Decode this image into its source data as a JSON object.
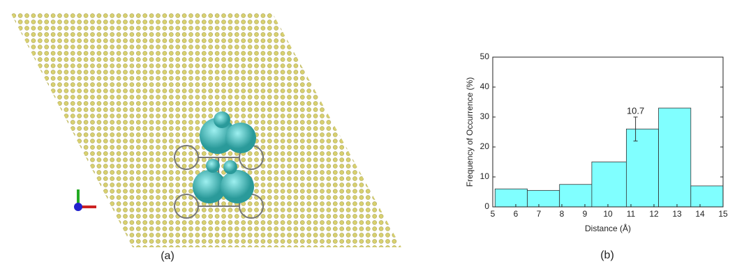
{
  "panels": [
    {
      "label": "(a)"
    },
    {
      "label": "(b)"
    }
  ],
  "chart_data": {
    "type": "histogram",
    "xlabel": "Distance (Å)",
    "ylabel": "Frequency of Occurrence (%)",
    "bins": [
      5.1,
      6.5,
      7.9,
      9.3,
      10.8,
      12.2,
      13.6,
      15.0
    ],
    "values": [
      6,
      5.5,
      7.5,
      15,
      26,
      33,
      7
    ],
    "color": "#80ffff",
    "edgecolor": "#333333",
    "xlim": [
      5,
      15
    ],
    "xticks": [
      5,
      6,
      7,
      8,
      9,
      10,
      11,
      12,
      13,
      14,
      15
    ],
    "ylim": [
      0,
      50
    ],
    "yticks": [
      0,
      10,
      20,
      30,
      40,
      50
    ],
    "annotation": {
      "text": "10.7",
      "x": 11.2,
      "y": 26,
      "error": 4
    }
  }
}
